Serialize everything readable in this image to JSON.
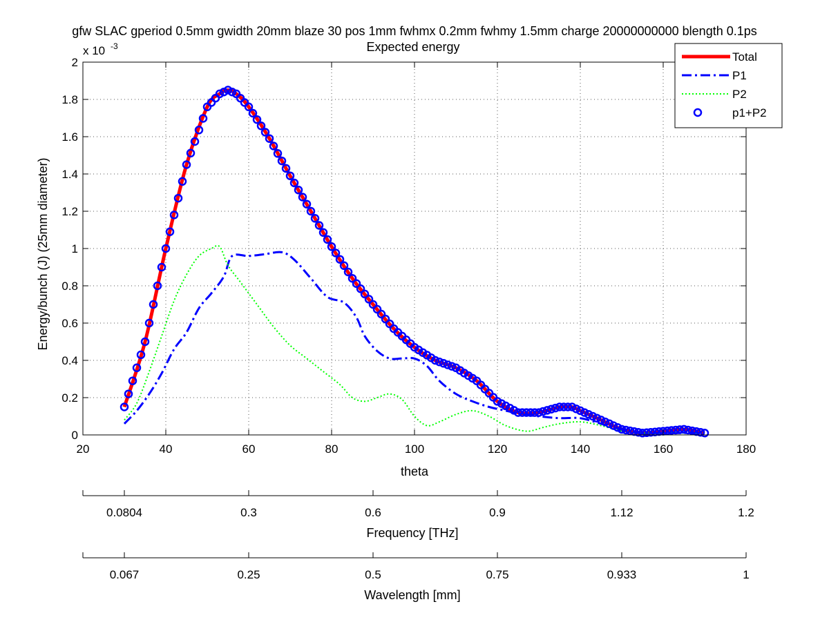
{
  "chart_data": {
    "type": "line",
    "title": "gfw SLAC gperiod 0.5mm gwidth 20mm blaze 30 pos 1mm fwhmx 0.2mm fwhmy 1.5mm charge 20000000000 blength 0.1ps",
    "subtitle": "Expected energy",
    "xlabel": "theta",
    "ylabel": "Energy/bunch (J)  (25mm diameter)",
    "y_exponent_label": "x 10",
    "y_exponent_power": "-3",
    "xlim": [
      20,
      180
    ],
    "ylim": [
      0,
      2
    ],
    "x_ticks": [
      20,
      40,
      60,
      80,
      100,
      120,
      140,
      160,
      180
    ],
    "y_ticks": [
      0,
      0.2,
      0.4,
      0.6,
      0.8,
      1,
      1.2,
      1.4,
      1.6,
      1.8,
      2
    ],
    "grid": true,
    "legend_position": "top-right",
    "series": [
      {
        "name": "Total",
        "style": "solid",
        "color": "#ff0000",
        "x": [
          30,
          35,
          40,
          45,
          50,
          53,
          55,
          57,
          60,
          65,
          70,
          75,
          80,
          85,
          90,
          95,
          100,
          105,
          110,
          115,
          120,
          125,
          130,
          135,
          138,
          140,
          145,
          150,
          155,
          160,
          165,
          170
        ],
        "values": [
          0.15,
          0.5,
          1.0,
          1.45,
          1.76,
          1.83,
          1.85,
          1.83,
          1.76,
          1.59,
          1.39,
          1.2,
          1.01,
          0.84,
          0.7,
          0.57,
          0.47,
          0.4,
          0.36,
          0.29,
          0.18,
          0.12,
          0.12,
          0.15,
          0.15,
          0.13,
          0.08,
          0.03,
          0.01,
          0.02,
          0.03,
          0.01
        ]
      },
      {
        "name": "P1",
        "style": "dashdot",
        "color": "#0000ff",
        "x": [
          30,
          33,
          36,
          39,
          42,
          45,
          48,
          51,
          54,
          56,
          60,
          64,
          68,
          71,
          75,
          79,
          83,
          86,
          88,
          91,
          94,
          97,
          100,
          103,
          106,
          110,
          114,
          118,
          122,
          126,
          130,
          135,
          140,
          145,
          150,
          155,
          160,
          165,
          170
        ],
        "values": [
          0.06,
          0.13,
          0.22,
          0.33,
          0.46,
          0.55,
          0.68,
          0.76,
          0.85,
          0.96,
          0.96,
          0.97,
          0.98,
          0.94,
          0.84,
          0.74,
          0.71,
          0.63,
          0.53,
          0.45,
          0.41,
          0.41,
          0.41,
          0.37,
          0.29,
          0.22,
          0.18,
          0.15,
          0.13,
          0.11,
          0.1,
          0.09,
          0.09,
          0.06,
          0.03,
          0.01,
          0.01,
          0.01,
          0.01
        ]
      },
      {
        "name": "P2",
        "style": "dotted",
        "color": "#00ff00",
        "x": [
          30,
          33,
          36,
          39,
          42,
          45,
          48,
          51,
          53,
          55,
          58,
          62,
          66,
          70,
          74,
          78,
          82,
          85,
          88,
          91,
          94,
          97,
          100,
          103,
          106,
          110,
          114,
          118,
          122,
          127,
          131,
          135,
          140,
          145,
          150,
          155,
          160,
          165,
          170
        ],
        "values": [
          0.08,
          0.17,
          0.34,
          0.53,
          0.72,
          0.86,
          0.96,
          1.0,
          1.01,
          0.91,
          0.82,
          0.7,
          0.58,
          0.48,
          0.41,
          0.34,
          0.27,
          0.2,
          0.18,
          0.2,
          0.22,
          0.19,
          0.1,
          0.05,
          0.07,
          0.11,
          0.13,
          0.1,
          0.05,
          0.02,
          0.04,
          0.06,
          0.07,
          0.05,
          0.02,
          0.01,
          0.01,
          0.01,
          0.01
        ]
      },
      {
        "name": "p1+P2",
        "style": "markers",
        "marker": "circle",
        "color": "#0000ff",
        "x_start": 30,
        "x_end": 170,
        "x_step": 1,
        "source_series": "Total"
      }
    ],
    "secondary_axes": [
      {
        "label": "Frequency [THz]",
        "ticks": [
          {
            "theta": 30,
            "label": "0.0804"
          },
          {
            "theta": 60,
            "label": "0.3"
          },
          {
            "theta": 90,
            "label": "0.6"
          },
          {
            "theta": 120,
            "label": "0.9"
          },
          {
            "theta": 150,
            "label": "1.12"
          },
          {
            "theta": 180,
            "label": "1.2"
          }
        ]
      },
      {
        "label": "Wavelength [mm]",
        "ticks": [
          {
            "theta": 30,
            "label": "0.067"
          },
          {
            "theta": 60,
            "label": "0.25"
          },
          {
            "theta": 90,
            "label": "0.5"
          },
          {
            "theta": 120,
            "label": "0.75"
          },
          {
            "theta": 150,
            "label": "0.933"
          },
          {
            "theta": 180,
            "label": "1"
          }
        ]
      }
    ]
  }
}
